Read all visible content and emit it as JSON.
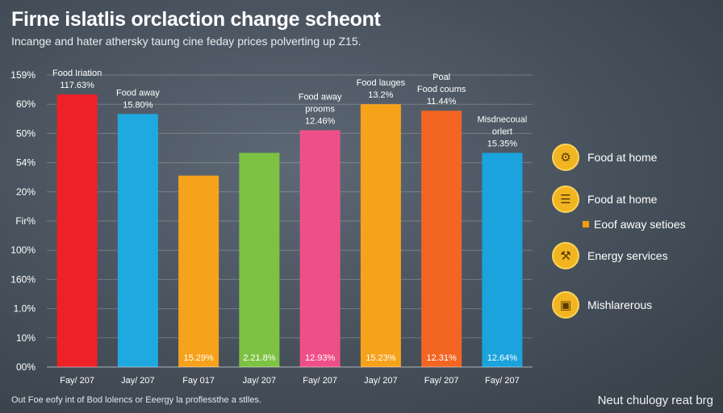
{
  "header": {
    "title": "Firne islatlis orclaction change scheont",
    "subtitle": "Incange and hater athersky taung cine  feday prices polverting up Z15."
  },
  "footer": {
    "note": "Out Foe eofy int of Bod lolencs or Eeergy la proflessthe a stlles.",
    "source": "Neut chulogy reat brg"
  },
  "legend": {
    "items": [
      {
        "label": "Food at home",
        "icon": "food-home-icon",
        "glyph": "⚙"
      },
      {
        "label": "Food at home",
        "icon": "document-icon",
        "glyph": "☰"
      },
      {
        "label": "Energy services",
        "icon": "energy-icon",
        "glyph": "⚒"
      },
      {
        "label": "Mishlarerous",
        "icon": "misc-icon",
        "glyph": "▣"
      }
    ],
    "sub_label": "Eoof away setioes",
    "sub_color": "#f39c12"
  },
  "chart_data": {
    "type": "bar",
    "title": "Firne islatlis orclaction change scheont",
    "xlabel": "",
    "ylabel": "",
    "ylim": [
      0,
      9
    ],
    "y_tick_labels": [
      "00%",
      "10%",
      "1.0%",
      "160%",
      "100%",
      "Fir%",
      "20%",
      "54%",
      "50%",
      "60%",
      "159%"
    ],
    "categories": [
      "Fay/ 207",
      "Jay/ 207",
      "Fay 017",
      "Jay/ 207",
      "Fay/ 207",
      "Jay/ 207",
      "Fay/ 207",
      "Fay/ 207"
    ],
    "values": [
      8.4,
      7.8,
      5.9,
      6.6,
      7.3,
      8.1,
      7.9,
      6.6
    ],
    "colors": [
      "#ee2127",
      "#1fa9e1",
      "#f7a21b",
      "#7dc242",
      "#ef4f87",
      "#f7a21b",
      "#f26522",
      "#1aa3dc"
    ],
    "top_labels": [
      [
        "Food Iriation",
        "117.63%"
      ],
      [
        "Food away",
        "15.80%"
      ],
      [],
      [],
      [
        "Food away",
        "prooms",
        "12.46%"
      ],
      [
        "Food lauges",
        "13.2%"
      ],
      [
        "Poal",
        "Food coums",
        "11.44%"
      ],
      [
        "Misdnecoual",
        "orlert",
        "15.35%"
      ]
    ],
    "bottom_labels": [
      "",
      "",
      "15.29%",
      "2.21.8%",
      "12.93%",
      "15.23%",
      "12.31%",
      "12.64%"
    ]
  }
}
